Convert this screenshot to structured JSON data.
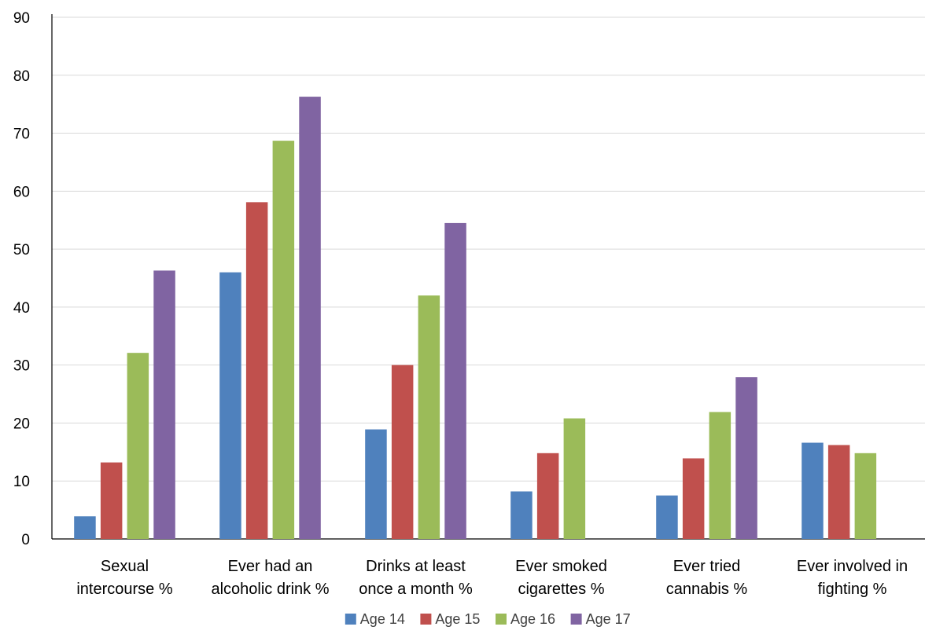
{
  "chart_data": {
    "type": "bar",
    "title": "",
    "xlabel": "",
    "ylabel": "",
    "ylim": [
      0,
      90
    ],
    "yticks": [
      0,
      10,
      20,
      30,
      40,
      50,
      60,
      70,
      80,
      90
    ],
    "grid": true,
    "legend_position": "bottom",
    "categories": [
      [
        "Sexual",
        "intercourse %"
      ],
      [
        "Ever had an",
        "alcoholic drink %"
      ],
      [
        "Drinks at least",
        "once a month %"
      ],
      [
        "Ever smoked",
        "cigarettes %"
      ],
      [
        "Ever tried",
        "cannabis %"
      ],
      [
        "Ever involved in",
        "fighting %"
      ]
    ],
    "series": [
      {
        "name": "Age 14",
        "color": "#4F81BD",
        "values": [
          3.9,
          46.0,
          18.9,
          8.2,
          7.5,
          16.6
        ]
      },
      {
        "name": "Age 15",
        "color": "#C0504D",
        "values": [
          13.2,
          58.1,
          30.0,
          14.8,
          13.9,
          16.2
        ]
      },
      {
        "name": "Age 16",
        "color": "#9BBB59",
        "values": [
          32.1,
          68.7,
          42.0,
          20.8,
          21.9,
          14.8
        ]
      },
      {
        "name": "Age 17",
        "color": "#8064A2",
        "values": [
          46.3,
          76.3,
          54.5,
          null,
          27.9,
          null
        ]
      }
    ]
  }
}
